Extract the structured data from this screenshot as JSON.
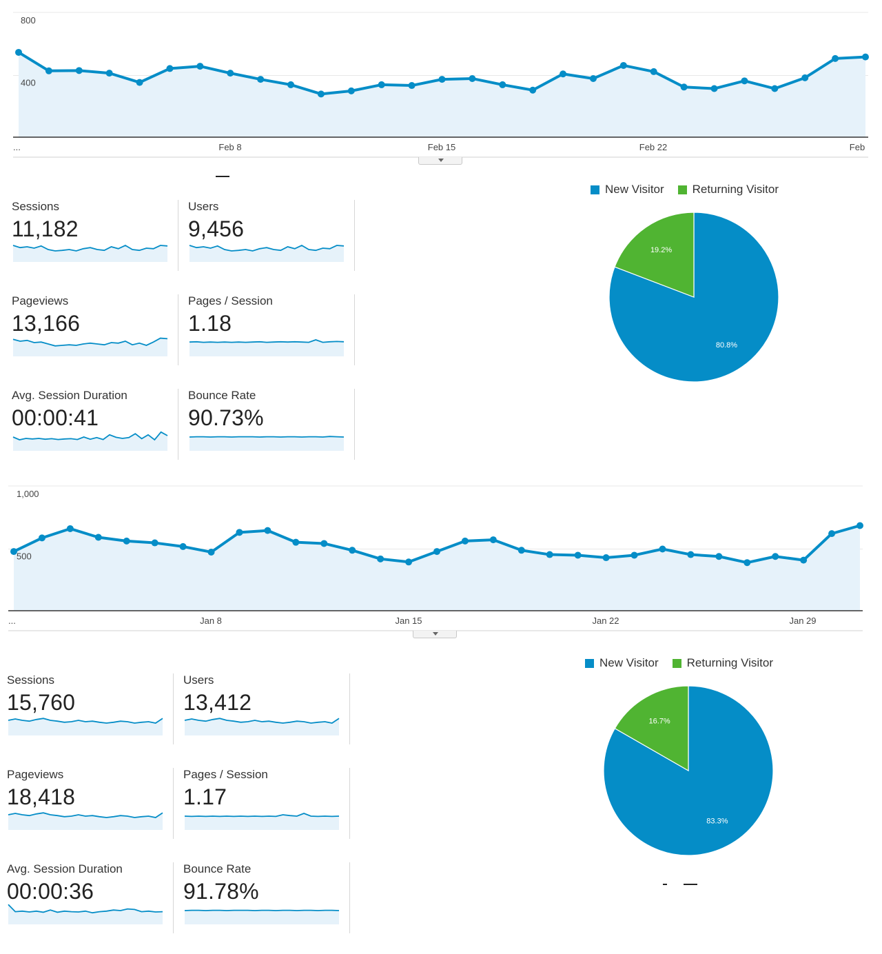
{
  "colors": {
    "line": "#058dc7",
    "fill": "#e6f2fa",
    "new_visitor": "#058dc7",
    "returning_visitor": "#50b432",
    "grid": "#e8e8e8",
    "axis": "#333333"
  },
  "icons": {
    "collapse": "chevron-down-icon"
  },
  "reports": [
    {
      "chart_data": {
        "type": "area",
        "y_ticks": [
          "800",
          "400"
        ],
        "ylim": [
          0,
          800
        ],
        "x_labels": [
          "...",
          "Feb 8",
          "Feb 15",
          "Feb 22",
          "Feb"
        ],
        "x_label_index": [
          0,
          7,
          14,
          21,
          28
        ],
        "values": [
          550,
          430,
          432,
          415,
          355,
          445,
          460,
          415,
          375,
          340,
          280,
          300,
          340,
          335,
          375,
          380,
          340,
          305,
          410,
          380,
          465,
          425,
          325,
          315,
          365,
          315,
          385,
          510,
          520
        ]
      },
      "metrics": [
        {
          "label": "Sessions",
          "value": "11,182",
          "spark": [
            60,
            52,
            55,
            50,
            58,
            45,
            40,
            42,
            45,
            40,
            48,
            52,
            45,
            42,
            55,
            48,
            60,
            45,
            42,
            50,
            48,
            60,
            58
          ]
        },
        {
          "label": "Users",
          "value": "9,456",
          "spark": [
            60,
            52,
            55,
            50,
            58,
            45,
            40,
            42,
            45,
            40,
            48,
            52,
            45,
            42,
            55,
            48,
            60,
            45,
            42,
            50,
            48,
            60,
            58
          ]
        },
        {
          "label": "Pageviews",
          "value": "13,166",
          "spark": [
            62,
            55,
            58,
            50,
            52,
            45,
            38,
            40,
            42,
            40,
            45,
            48,
            45,
            42,
            50,
            48,
            55,
            42,
            48,
            40,
            52,
            66,
            64
          ]
        },
        {
          "label": "Pages / Session",
          "value": "1.18",
          "spark": [
            52,
            53,
            51,
            52,
            51,
            52,
            51,
            52,
            51,
            52,
            53,
            51,
            52,
            53,
            52,
            53,
            52,
            51,
            60,
            51,
            53,
            54,
            53
          ]
        },
        {
          "label": "Avg. Session Duration",
          "value": "00:00:41",
          "spark": [
            50,
            40,
            45,
            43,
            45,
            42,
            44,
            41,
            43,
            44,
            41,
            50,
            42,
            48,
            41,
            58,
            49,
            45,
            48,
            62,
            44,
            58,
            40,
            68,
            55
          ]
        },
        {
          "label": "Bounce Rate",
          "value": "90.73%",
          "spark": [
            50,
            51,
            51,
            50,
            51,
            51,
            50,
            51,
            51,
            51,
            50,
            51,
            51,
            50,
            51,
            51,
            50,
            51,
            51,
            50,
            52,
            51,
            50
          ]
        }
      ],
      "pie": {
        "legend": [
          {
            "label": "New Visitor"
          },
          {
            "label": "Returning Visitor"
          }
        ],
        "slices": [
          {
            "name": "New Visitor",
            "value": 80.8,
            "label": "80.8%"
          },
          {
            "name": "Returning Visitor",
            "value": 19.2,
            "label": "19.2%"
          }
        ]
      }
    },
    {
      "chart_data": {
        "type": "area",
        "y_ticks": [
          "1,000",
          "500"
        ],
        "ylim": [
          0,
          1000
        ],
        "x_labels": [
          "...",
          "Jan 8",
          "Jan 15",
          "Jan 22",
          "Jan 29"
        ],
        "x_label_index": [
          0,
          7,
          14,
          21,
          28
        ],
        "values": [
          480,
          590,
          665,
          595,
          565,
          550,
          520,
          475,
          635,
          650,
          555,
          545,
          490,
          420,
          395,
          480,
          565,
          575,
          490,
          455,
          450,
          430,
          450,
          500,
          455,
          440,
          390,
          440,
          410,
          625,
          690
        ]
      },
      "metrics": [
        {
          "label": "Sessions",
          "value": "15,760",
          "spark": [
            55,
            60,
            55,
            52,
            58,
            62,
            55,
            52,
            48,
            50,
            55,
            50,
            52,
            48,
            45,
            48,
            52,
            50,
            45,
            48,
            50,
            45,
            62
          ]
        },
        {
          "label": "Users",
          "value": "13,412",
          "spark": [
            55,
            60,
            55,
            52,
            58,
            62,
            55,
            52,
            48,
            50,
            55,
            50,
            52,
            48,
            45,
            48,
            52,
            50,
            45,
            48,
            50,
            45,
            62
          ]
        },
        {
          "label": "Pageviews",
          "value": "18,418",
          "spark": [
            55,
            60,
            55,
            52,
            58,
            62,
            55,
            52,
            48,
            50,
            55,
            50,
            52,
            48,
            45,
            48,
            52,
            50,
            45,
            48,
            50,
            45,
            62
          ]
        },
        {
          "label": "Pages / Session",
          "value": "1.17",
          "spark": [
            50,
            49,
            50,
            49,
            50,
            49,
            50,
            49,
            50,
            49,
            50,
            49,
            50,
            49,
            55,
            52,
            50,
            60,
            50,
            49,
            50,
            49,
            50
          ]
        },
        {
          "label": "Avg. Session Duration",
          "value": "00:00:36",
          "spark": [
            72,
            46,
            48,
            45,
            48,
            44,
            52,
            44,
            48,
            46,
            45,
            48,
            42,
            46,
            48,
            52,
            50,
            56,
            54,
            46,
            48,
            45,
            46
          ]
        },
        {
          "label": "Bounce Rate",
          "value": "91.78%",
          "spark": [
            50,
            51,
            51,
            50,
            51,
            51,
            50,
            51,
            51,
            51,
            50,
            51,
            51,
            50,
            51,
            51,
            50,
            51,
            51,
            50,
            51,
            51,
            50
          ]
        }
      ],
      "pie": {
        "legend": [
          {
            "label": "New Visitor"
          },
          {
            "label": "Returning Visitor"
          }
        ],
        "slices": [
          {
            "name": "New Visitor",
            "value": 83.3,
            "label": "83.3%"
          },
          {
            "name": "Returning Visitor",
            "value": 16.7,
            "label": "16.7%"
          }
        ]
      }
    }
  ]
}
